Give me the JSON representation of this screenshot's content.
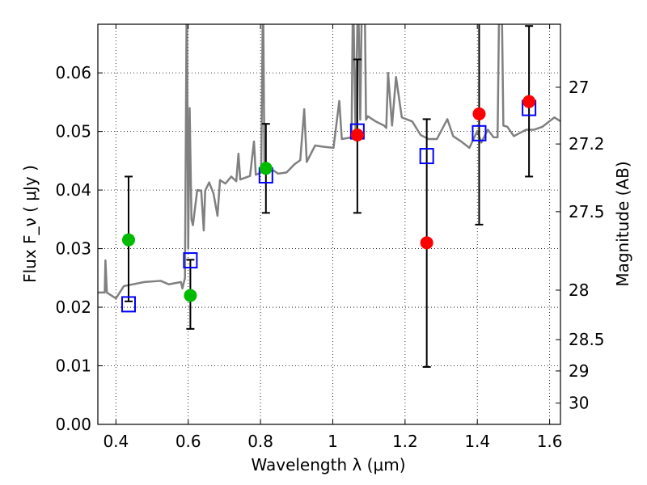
{
  "chart_data": {
    "type": "scatter",
    "xlabel": "Wavelength  λ (μm)",
    "ylabel": "Flux  F_ν  ( μJy )",
    "ylabel_right": "Magnitude (AB)",
    "xlim": [
      0.35,
      1.63
    ],
    "ylim": [
      0.0,
      0.0683
    ],
    "grid": true,
    "xticks": [
      0.4,
      0.6,
      0.8,
      1.0,
      1.2,
      1.4,
      1.6
    ],
    "xtick_labels": [
      "0.4",
      "0.6",
      "0.8",
      "1",
      "1.2",
      "1.4",
      "1.6"
    ],
    "yticks": [
      0.0,
      0.01,
      0.02,
      0.03,
      0.04,
      0.05,
      0.06
    ],
    "ytick_labels": [
      "0.00",
      "0.01",
      "0.02",
      "0.03",
      "0.04",
      "0.05",
      "0.06"
    ],
    "right_ticks": [
      27,
      27.2,
      27.5,
      28,
      28.5,
      29,
      30
    ],
    "right_tick_labels": [
      "27",
      "27.2",
      "27.5",
      "28",
      "28.5",
      "29",
      "30"
    ],
    "mag_zeropoint": 23.9,
    "colors": {
      "spectrum": "#808080",
      "green": "#00bb00",
      "red": "#ff0000",
      "square": "#0000ff",
      "errorbar": "#000000"
    },
    "spectrum": [
      [
        0.35,
        0.0225
      ],
      [
        0.369,
        0.0225
      ],
      [
        0.371,
        0.028
      ],
      [
        0.375,
        0.0225
      ],
      [
        0.4,
        0.0215
      ],
      [
        0.422,
        0.0236
      ],
      [
        0.479,
        0.0243
      ],
      [
        0.524,
        0.0245
      ],
      [
        0.546,
        0.0239
      ],
      [
        0.58,
        0.0243
      ],
      [
        0.584,
        0.0232
      ],
      [
        0.591,
        0.025
      ],
      [
        0.596,
        0.075
      ],
      [
        0.6,
        0.03
      ],
      [
        0.604,
        0.054
      ],
      [
        0.609,
        0.035
      ],
      [
        0.613,
        0.034
      ],
      [
        0.625,
        0.04
      ],
      [
        0.636,
        0.0399
      ],
      [
        0.643,
        0.0331
      ],
      [
        0.647,
        0.0399
      ],
      [
        0.658,
        0.0413
      ],
      [
        0.67,
        0.0394
      ],
      [
        0.681,
        0.0356
      ],
      [
        0.688,
        0.0417
      ],
      [
        0.703,
        0.0411
      ],
      [
        0.719,
        0.0423
      ],
      [
        0.733,
        0.0415
      ],
      [
        0.739,
        0.0462
      ],
      [
        0.744,
        0.0418
      ],
      [
        0.771,
        0.0424
      ],
      [
        0.782,
        0.0483
      ],
      [
        0.787,
        0.0426
      ],
      [
        0.802,
        0.043
      ],
      [
        0.807,
        0.075
      ],
      [
        0.811,
        0.0435
      ],
      [
        0.827,
        0.0437
      ],
      [
        0.849,
        0.0428
      ],
      [
        0.872,
        0.043
      ],
      [
        0.894,
        0.0444
      ],
      [
        0.91,
        0.0451
      ],
      [
        0.921,
        0.0538
      ],
      [
        0.928,
        0.0448
      ],
      [
        0.951,
        0.0476
      ],
      [
        0.973,
        0.0474
      ],
      [
        1.002,
        0.0472
      ],
      [
        1.018,
        0.0552
      ],
      [
        1.025,
        0.0487
      ],
      [
        1.052,
        0.049
      ],
      [
        1.056,
        0.075
      ],
      [
        1.063,
        0.05
      ],
      [
        1.07,
        0.075
      ],
      [
        1.076,
        0.052
      ],
      [
        1.081,
        0.075
      ],
      [
        1.088,
        0.075
      ],
      [
        1.092,
        0.052
      ],
      [
        1.097,
        0.0526
      ],
      [
        1.119,
        0.0517
      ],
      [
        1.142,
        0.051
      ],
      [
        1.148,
        0.0506
      ],
      [
        1.153,
        0.06
      ],
      [
        1.164,
        0.051
      ],
      [
        1.175,
        0.0593
      ],
      [
        1.191,
        0.0524
      ],
      [
        1.22,
        0.0517
      ],
      [
        1.243,
        0.0494
      ],
      [
        1.265,
        0.0487
      ],
      [
        1.288,
        0.0487
      ],
      [
        1.317,
        0.0521
      ],
      [
        1.333,
        0.0492
      ],
      [
        1.355,
        0.0483
      ],
      [
        1.378,
        0.0472
      ],
      [
        1.4,
        0.0501
      ],
      [
        1.411,
        0.0481
      ],
      [
        1.429,
        0.0503
      ],
      [
        1.445,
        0.049
      ],
      [
        1.456,
        0.049
      ],
      [
        1.461,
        0.075
      ],
      [
        1.467,
        0.075
      ],
      [
        1.472,
        0.051
      ],
      [
        1.483,
        0.0508
      ],
      [
        1.501,
        0.0492
      ],
      [
        1.535,
        0.0503
      ],
      [
        1.557,
        0.0503
      ],
      [
        1.58,
        0.0508
      ],
      [
        1.613,
        0.0524
      ],
      [
        1.631,
        0.0517
      ]
    ],
    "errorbars": [
      {
        "x": 0.435,
        "low": 0.021,
        "high": 0.0423
      },
      {
        "x": 0.606,
        "low": 0.0163,
        "high": 0.0281
      },
      {
        "x": 0.815,
        "low": 0.0361,
        "high": 0.0513
      },
      {
        "x": 1.068,
        "low": 0.0361,
        "high": 0.0623
      },
      {
        "x": 1.26,
        "low": 0.0098,
        "high": 0.0521
      },
      {
        "x": 1.405,
        "low": 0.0341,
        "high": 0.072
      },
      {
        "x": 1.543,
        "low": 0.0423,
        "high": 0.068
      }
    ],
    "model_photometry": [
      {
        "x": 0.435,
        "y": 0.0205
      },
      {
        "x": 0.606,
        "y": 0.028
      },
      {
        "x": 0.815,
        "y": 0.0425
      },
      {
        "x": 1.068,
        "y": 0.05
      },
      {
        "x": 1.26,
        "y": 0.0458
      },
      {
        "x": 1.405,
        "y": 0.0497
      },
      {
        "x": 1.543,
        "y": 0.054
      }
    ],
    "observed_green": [
      {
        "x": 0.435,
        "y": 0.0315
      },
      {
        "x": 0.606,
        "y": 0.022
      },
      {
        "x": 0.815,
        "y": 0.0437
      }
    ],
    "observed_red": [
      {
        "x": 1.068,
        "y": 0.0494
      },
      {
        "x": 1.26,
        "y": 0.031
      },
      {
        "x": 1.405,
        "y": 0.053
      },
      {
        "x": 1.543,
        "y": 0.0551
      }
    ]
  }
}
